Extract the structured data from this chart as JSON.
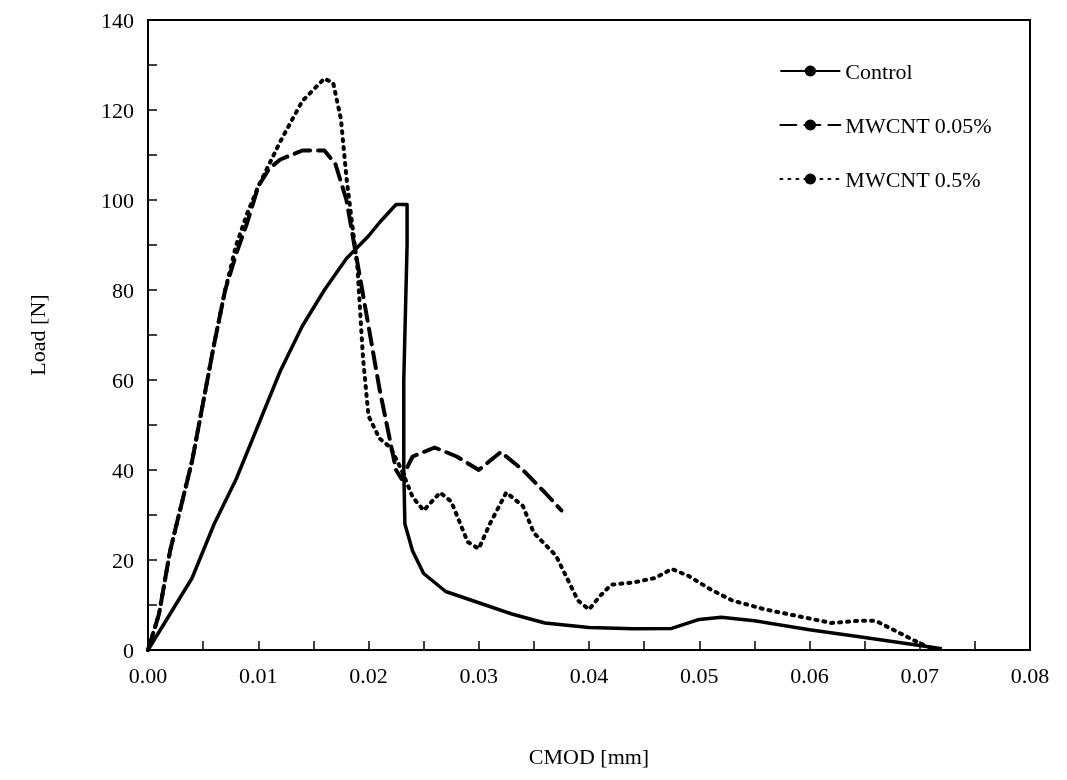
{
  "chart_data": {
    "type": "line",
    "xlabel": "CMOD [mm]",
    "ylabel": "Load [N]",
    "xlim": [
      0,
      0.08
    ],
    "ylim": [
      0,
      140
    ],
    "xticks": [
      {
        "value": 0,
        "label": "0.00"
      },
      {
        "value": 0.005,
        "label": null
      },
      {
        "value": 0.01,
        "label": "0.01"
      },
      {
        "value": 0.015,
        "label": null
      },
      {
        "value": 0.02,
        "label": "0.02"
      },
      {
        "value": 0.025,
        "label": null
      },
      {
        "value": 0.03,
        "label": "0.03"
      },
      {
        "value": 0.035,
        "label": null
      },
      {
        "value": 0.04,
        "label": "0.04"
      },
      {
        "value": 0.045,
        "label": null
      },
      {
        "value": 0.05,
        "label": "0.05"
      },
      {
        "value": 0.055,
        "label": null
      },
      {
        "value": 0.06,
        "label": "0.06"
      },
      {
        "value": 0.065,
        "label": null
      },
      {
        "value": 0.07,
        "label": "0.07"
      },
      {
        "value": 0.075,
        "label": null
      },
      {
        "value": 0.08,
        "label": "0.08"
      }
    ],
    "yticks": [
      0,
      {
        "value": 10,
        "label": null
      },
      20,
      {
        "value": 30,
        "label": null
      },
      40,
      {
        "value": 50,
        "label": null
      },
      60,
      {
        "value": 70,
        "label": null
      },
      80,
      {
        "value": 90,
        "label": null
      },
      100,
      {
        "value": 110,
        "label": null
      },
      120,
      {
        "value": 130,
        "label": null
      },
      140
    ],
    "grid": false,
    "legend": "top right",
    "marker": "none",
    "series": [
      {
        "name": "Control",
        "color": "#000000",
        "line_style": "solid",
        "x": [
          0,
          0.002,
          0.004,
          0.006,
          0.008,
          0.01,
          0.012,
          0.014,
          0.016,
          0.018,
          0.02,
          0.021,
          0.0225,
          0.0235,
          0.0235,
          0.0232,
          0.0232,
          0.0233,
          0.024,
          0.025,
          0.027,
          0.03,
          0.033,
          0.036,
          0.04,
          0.044,
          0.0475,
          0.05,
          0.052,
          0.055,
          0.06,
          0.065,
          0.07,
          0.072
        ],
        "values": [
          0,
          8,
          16,
          28,
          38,
          50,
          62,
          72,
          80,
          87,
          92,
          95,
          99,
          99,
          90,
          60,
          40,
          28,
          22,
          17,
          13,
          10.5,
          8,
          6,
          5,
          4.7,
          4.8,
          6.8,
          7.3,
          6.5,
          4.5,
          2.8,
          1,
          0.3
        ]
      },
      {
        "name": "MWCNT 0.05%",
        "color": "#000000",
        "line_style": "dashed",
        "x": [
          0,
          0.001,
          0.002,
          0.003,
          0.004,
          0.005,
          0.006,
          0.007,
          0.008,
          0.009,
          0.01,
          0.011,
          0.012,
          0.014,
          0.016,
          0.017,
          0.018,
          0.019,
          0.02,
          0.021,
          0.022,
          0.0225,
          0.023,
          0.024,
          0.026,
          0.028,
          0.03,
          0.032,
          0.034,
          0.036,
          0.0375
        ],
        "values": [
          0,
          8,
          22,
          32,
          42,
          55,
          68,
          80,
          88,
          95,
          103,
          107,
          109,
          111,
          111,
          108,
          100,
          86,
          72,
          58,
          46,
          40,
          38,
          43,
          45,
          43,
          40,
          44,
          40,
          35,
          31
        ]
      },
      {
        "name": "MWCNT 0.5%",
        "color": "#000000",
        "line_style": "dotted",
        "x": [
          0,
          0.001,
          0.002,
          0.003,
          0.004,
          0.005,
          0.006,
          0.007,
          0.008,
          0.009,
          0.01,
          0.012,
          0.014,
          0.016,
          0.0168,
          0.0175,
          0.018,
          0.019,
          0.0195,
          0.02,
          0.021,
          0.022,
          0.023,
          0.024,
          0.025,
          0.0265,
          0.0275,
          0.029,
          0.03,
          0.031,
          0.0325,
          0.034,
          0.035,
          0.037,
          0.038,
          0.039,
          0.04,
          0.041,
          0.042,
          0.044,
          0.046,
          0.0475,
          0.049,
          0.051,
          0.053,
          0.056,
          0.059,
          0.062,
          0.0645,
          0.066,
          0.068,
          0.07,
          0.0715
        ],
        "values": [
          0,
          8,
          22,
          32,
          42,
          55,
          68,
          80,
          90,
          97,
          103,
          113,
          122,
          127,
          126,
          118,
          105,
          85,
          65,
          52,
          47,
          45,
          40,
          34,
          31,
          35,
          33,
          24,
          22.5,
          28,
          35,
          32,
          26,
          21,
          16,
          11,
          9,
          12,
          14.5,
          15,
          16,
          18,
          16.5,
          13.5,
          11,
          9,
          7.5,
          6,
          6.5,
          6.5,
          4,
          1.5,
          0
        ]
      }
    ]
  }
}
